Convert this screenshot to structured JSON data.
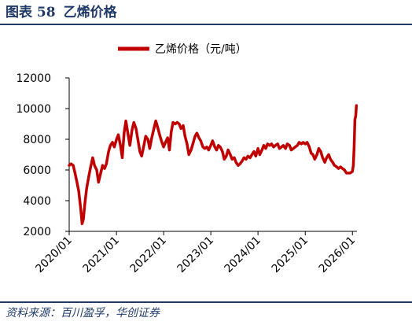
{
  "header": {
    "figure_number": "图表 58",
    "figure_title": "乙烯价格"
  },
  "footer": {
    "source": "资料来源：百川盈孚，华创证券"
  },
  "colors": {
    "series": "#c00000",
    "header": "#1f3a68"
  },
  "chart_data": {
    "type": "line",
    "title": "",
    "xlabel": "",
    "ylabel": "",
    "ylim": [
      2000,
      12000
    ],
    "yticks": [
      2000,
      4000,
      6000,
      8000,
      10000,
      12000
    ],
    "xticks": [
      "2020/01",
      "2021/01",
      "2022/01",
      "2023/01",
      "2024/01",
      "2025/01",
      "2026/01"
    ],
    "legend": "top-center",
    "grid": false,
    "series": [
      {
        "name": "乙烯价格（元/吨）",
        "color": "#c00000",
        "points": [
          [
            "2020-01-01",
            6300
          ],
          [
            "2020-01-15",
            6400
          ],
          [
            "2020-02-01",
            6300
          ],
          [
            "2020-02-15",
            5800
          ],
          [
            "2020-03-01",
            5200
          ],
          [
            "2020-03-15",
            4600
          ],
          [
            "2020-04-01",
            3300
          ],
          [
            "2020-04-10",
            2500
          ],
          [
            "2020-04-20",
            2800
          ],
          [
            "2020-05-01",
            3800
          ],
          [
            "2020-05-15",
            4800
          ],
          [
            "2020-06-01",
            5600
          ],
          [
            "2020-06-15",
            6200
          ],
          [
            "2020-07-01",
            6800
          ],
          [
            "2020-07-15",
            6300
          ],
          [
            "2020-08-01",
            6000
          ],
          [
            "2020-08-15",
            5200
          ],
          [
            "2020-09-01",
            5800
          ],
          [
            "2020-09-15",
            6300
          ],
          [
            "2020-10-01",
            6100
          ],
          [
            "2020-10-15",
            6400
          ],
          [
            "2020-11-01",
            7200
          ],
          [
            "2020-11-15",
            7600
          ],
          [
            "2020-12-01",
            7800
          ],
          [
            "2020-12-15",
            7500
          ],
          [
            "2021-01-01",
            8000
          ],
          [
            "2021-01-15",
            8300
          ],
          [
            "2021-02-01",
            7600
          ],
          [
            "2021-02-15",
            6800
          ],
          [
            "2021-03-01",
            8400
          ],
          [
            "2021-03-15",
            9200
          ],
          [
            "2021-04-01",
            8300
          ],
          [
            "2021-04-15",
            7600
          ],
          [
            "2021-05-01",
            8600
          ],
          [
            "2021-05-15",
            9100
          ],
          [
            "2021-06-01",
            8700
          ],
          [
            "2021-06-15",
            8000
          ],
          [
            "2021-07-01",
            7200
          ],
          [
            "2021-07-15",
            6900
          ],
          [
            "2021-08-01",
            7600
          ],
          [
            "2021-08-15",
            8200
          ],
          [
            "2021-09-01",
            8000
          ],
          [
            "2021-09-15",
            7400
          ],
          [
            "2021-10-01",
            8100
          ],
          [
            "2021-10-15",
            8600
          ],
          [
            "2021-11-01",
            9200
          ],
          [
            "2021-11-15",
            8800
          ],
          [
            "2021-12-01",
            8300
          ],
          [
            "2021-12-15",
            7900
          ],
          [
            "2022-01-01",
            7500
          ],
          [
            "2022-01-15",
            7800
          ],
          [
            "2022-02-01",
            8100
          ],
          [
            "2022-02-15",
            7300
          ],
          [
            "2022-03-01",
            8500
          ],
          [
            "2022-03-15",
            9100
          ],
          [
            "2022-04-01",
            9000
          ],
          [
            "2022-04-15",
            9100
          ],
          [
            "2022-05-01",
            9000
          ],
          [
            "2022-05-15",
            8700
          ],
          [
            "2022-06-01",
            8900
          ],
          [
            "2022-06-15",
            8200
          ],
          [
            "2022-07-01",
            7700
          ],
          [
            "2022-07-15",
            7000
          ],
          [
            "2022-08-01",
            7300
          ],
          [
            "2022-08-15",
            7700
          ],
          [
            "2022-09-01",
            8200
          ],
          [
            "2022-09-15",
            8400
          ],
          [
            "2022-10-01",
            8100
          ],
          [
            "2022-10-15",
            7900
          ],
          [
            "2022-11-01",
            7500
          ],
          [
            "2022-11-15",
            7400
          ],
          [
            "2022-12-01",
            7500
          ],
          [
            "2022-12-15",
            7300
          ],
          [
            "2023-01-01",
            7600
          ],
          [
            "2023-01-15",
            7900
          ],
          [
            "2023-02-01",
            7500
          ],
          [
            "2023-02-15",
            7300
          ],
          [
            "2023-03-01",
            7600
          ],
          [
            "2023-03-15",
            7500
          ],
          [
            "2023-04-01",
            7200
          ],
          [
            "2023-04-15",
            6700
          ],
          [
            "2023-05-01",
            6900
          ],
          [
            "2023-05-15",
            7300
          ],
          [
            "2023-06-01",
            7000
          ],
          [
            "2023-06-15",
            6700
          ],
          [
            "2023-07-01",
            6800
          ],
          [
            "2023-07-15",
            6500
          ],
          [
            "2023-08-01",
            6300
          ],
          [
            "2023-08-15",
            6400
          ],
          [
            "2023-09-01",
            6600
          ],
          [
            "2023-09-15",
            6800
          ],
          [
            "2023-10-01",
            6700
          ],
          [
            "2023-10-15",
            6900
          ],
          [
            "2023-11-01",
            6800
          ],
          [
            "2023-11-15",
            7000
          ],
          [
            "2023-12-01",
            7200
          ],
          [
            "2023-12-15",
            6900
          ],
          [
            "2024-01-01",
            7400
          ],
          [
            "2024-01-15",
            7000
          ],
          [
            "2024-02-01",
            7300
          ],
          [
            "2024-02-15",
            7600
          ],
          [
            "2024-03-01",
            7400
          ],
          [
            "2024-03-15",
            7700
          ],
          [
            "2024-04-01",
            7600
          ],
          [
            "2024-04-15",
            7700
          ],
          [
            "2024-05-01",
            7500
          ],
          [
            "2024-05-15",
            7600
          ],
          [
            "2024-06-01",
            7700
          ],
          [
            "2024-06-15",
            7400
          ],
          [
            "2024-07-01",
            7500
          ],
          [
            "2024-07-15",
            7600
          ],
          [
            "2024-08-01",
            7400
          ],
          [
            "2024-08-15",
            7700
          ],
          [
            "2024-09-01",
            7600
          ],
          [
            "2024-09-15",
            7300
          ],
          [
            "2024-10-01",
            7400
          ],
          [
            "2024-10-15",
            7500
          ],
          [
            "2024-11-01",
            7600
          ],
          [
            "2024-11-15",
            7800
          ],
          [
            "2024-12-01",
            7700
          ],
          [
            "2024-12-15",
            7800
          ],
          [
            "2025-01-01",
            7700
          ],
          [
            "2025-01-15",
            7800
          ],
          [
            "2025-02-01",
            7500
          ],
          [
            "2025-02-15",
            7100
          ],
          [
            "2025-03-01",
            7000
          ],
          [
            "2025-03-15",
            6700
          ],
          [
            "2025-04-01",
            7000
          ],
          [
            "2025-04-15",
            7400
          ],
          [
            "2025-05-01",
            7200
          ],
          [
            "2025-05-15",
            6800
          ],
          [
            "2025-06-01",
            6500
          ],
          [
            "2025-06-15",
            6800
          ],
          [
            "2025-07-01",
            7000
          ],
          [
            "2025-07-15",
            6700
          ],
          [
            "2025-08-01",
            6500
          ],
          [
            "2025-08-15",
            6300
          ],
          [
            "2025-09-01",
            6200
          ],
          [
            "2025-09-15",
            6100
          ],
          [
            "2025-10-01",
            6200
          ],
          [
            "2025-10-15",
            6100
          ],
          [
            "2025-11-01",
            6000
          ],
          [
            "2025-11-15",
            5800
          ],
          [
            "2025-12-01",
            5800
          ],
          [
            "2025-12-15",
            5800
          ],
          [
            "2026-01-01",
            5900
          ],
          [
            "2026-01-08",
            6300
          ],
          [
            "2026-01-14",
            7500
          ],
          [
            "2026-01-20",
            9300
          ],
          [
            "2026-01-26",
            9500
          ],
          [
            "2026-02-01",
            10200
          ]
        ]
      }
    ]
  }
}
